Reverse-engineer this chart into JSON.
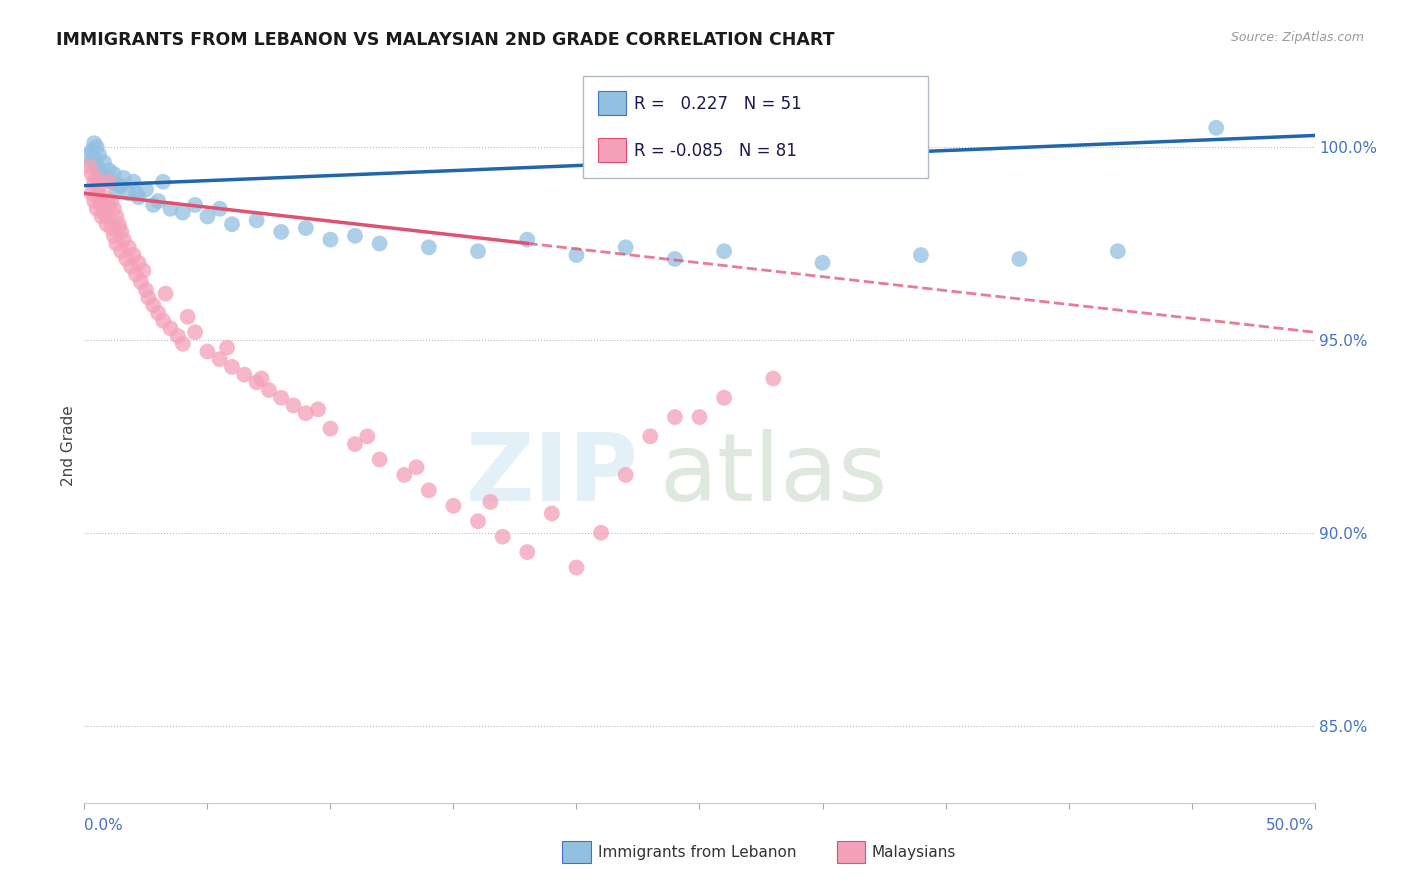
{
  "title": "IMMIGRANTS FROM LEBANON VS MALAYSIAN 2ND GRADE CORRELATION CHART",
  "source": "Source: ZipAtlas.com",
  "ylabel": "2nd Grade",
  "right_yticks": [
    100.0,
    95.0,
    90.0,
    85.0
  ],
  "legend_blue_r": "0.227",
  "legend_blue_n": "51",
  "legend_pink_r": "-0.085",
  "legend_pink_n": "81",
  "blue_color": "#92c0e0",
  "pink_color": "#f4a0b8",
  "blue_line_color": "#2166ac",
  "pink_line_color": "#e05070",
  "xlim": [
    0,
    50
  ],
  "ylim": [
    83,
    101.5
  ],
  "blue_trend_x0": 0,
  "blue_trend_y0": 99.0,
  "blue_trend_x1": 50,
  "blue_trend_y1": 100.3,
  "pink_trend_x0": 0,
  "pink_trend_y0": 98.8,
  "pink_trend_x1": 50,
  "pink_trend_y1": 95.2,
  "pink_solid_end_x": 18,
  "blue_scatter_x": [
    0.2,
    0.3,
    0.3,
    0.4,
    0.4,
    0.5,
    0.5,
    0.6,
    0.6,
    0.7,
    0.8,
    0.9,
    1.0,
    1.1,
    1.2,
    1.3,
    1.5,
    1.6,
    1.8,
    2.0,
    2.2,
    2.5,
    2.8,
    3.0,
    3.5,
    4.0,
    4.5,
    5.0,
    5.5,
    6.0,
    7.0,
    8.0,
    9.0,
    10.0,
    11.0,
    12.0,
    14.0,
    16.0,
    18.0,
    20.0,
    22.0,
    24.0,
    26.0,
    30.0,
    34.0,
    38.0,
    42.0,
    46.0,
    1.4,
    2.1,
    3.2
  ],
  "blue_scatter_y": [
    99.8,
    99.6,
    99.9,
    99.7,
    100.1,
    99.5,
    100.0,
    99.8,
    99.4,
    99.3,
    99.6,
    99.2,
    99.4,
    99.1,
    99.3,
    98.9,
    99.0,
    99.2,
    98.8,
    99.1,
    98.7,
    98.9,
    98.5,
    98.6,
    98.4,
    98.3,
    98.5,
    98.2,
    98.4,
    98.0,
    98.1,
    97.8,
    97.9,
    97.6,
    97.7,
    97.5,
    97.4,
    97.3,
    97.6,
    97.2,
    97.4,
    97.1,
    97.3,
    97.0,
    97.2,
    97.1,
    97.3,
    100.5,
    99.0,
    98.8,
    99.1
  ],
  "pink_scatter_x": [
    0.2,
    0.3,
    0.3,
    0.4,
    0.4,
    0.5,
    0.5,
    0.5,
    0.6,
    0.6,
    0.7,
    0.7,
    0.8,
    0.8,
    0.9,
    1.0,
    1.0,
    1.1,
    1.1,
    1.2,
    1.2,
    1.3,
    1.3,
    1.4,
    1.5,
    1.5,
    1.6,
    1.7,
    1.8,
    1.9,
    2.0,
    2.1,
    2.2,
    2.3,
    2.5,
    2.6,
    2.8,
    3.0,
    3.2,
    3.5,
    3.8,
    4.0,
    4.5,
    5.0,
    5.5,
    6.0,
    6.5,
    7.0,
    7.5,
    8.0,
    8.5,
    9.0,
    10.0,
    11.0,
    12.0,
    13.0,
    14.0,
    15.0,
    16.0,
    17.0,
    18.0,
    20.0,
    22.0,
    24.0,
    26.0,
    0.9,
    1.4,
    2.4,
    3.3,
    4.2,
    5.8,
    7.2,
    9.5,
    11.5,
    13.5,
    16.5,
    19.0,
    21.0,
    23.0,
    25.0,
    28.0
  ],
  "pink_scatter_y": [
    99.5,
    99.3,
    98.8,
    99.1,
    98.6,
    99.2,
    98.9,
    98.4,
    99.0,
    98.7,
    98.5,
    98.2,
    98.7,
    98.3,
    98.0,
    99.1,
    98.5,
    98.6,
    97.9,
    98.4,
    97.7,
    98.2,
    97.5,
    98.0,
    97.8,
    97.3,
    97.6,
    97.1,
    97.4,
    96.9,
    97.2,
    96.7,
    97.0,
    96.5,
    96.3,
    96.1,
    95.9,
    95.7,
    95.5,
    95.3,
    95.1,
    94.9,
    95.2,
    94.7,
    94.5,
    94.3,
    94.1,
    93.9,
    93.7,
    93.5,
    93.3,
    93.1,
    92.7,
    92.3,
    91.9,
    91.5,
    91.1,
    90.7,
    90.3,
    89.9,
    89.5,
    89.1,
    91.5,
    93.0,
    93.5,
    98.2,
    97.9,
    96.8,
    96.2,
    95.6,
    94.8,
    94.0,
    93.2,
    92.5,
    91.7,
    90.8,
    90.5,
    90.0,
    92.5,
    93.0,
    94.0
  ]
}
